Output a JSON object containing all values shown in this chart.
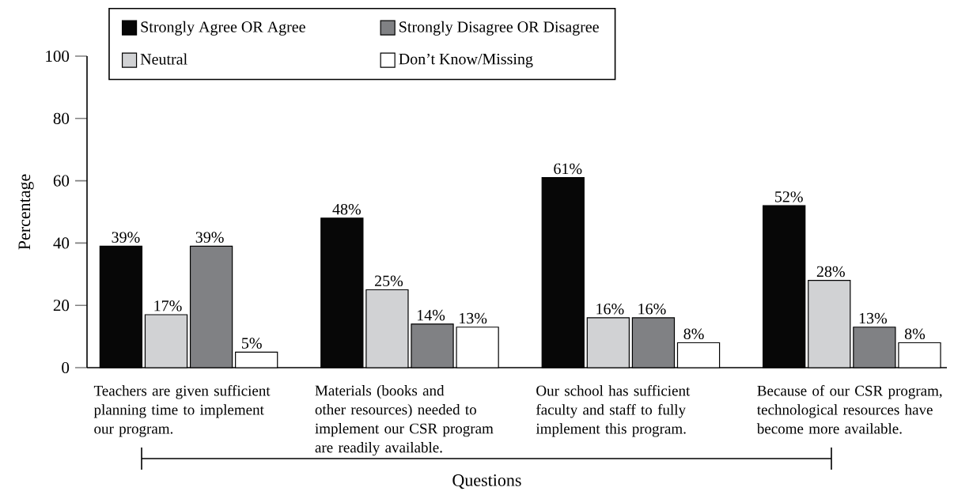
{
  "chart_data": {
    "type": "bar",
    "categories": [
      "Teachers are given sufficient planning time to implement our program.",
      "Materials (books and other resources) needed to implement our CSR program are readily available.",
      "Our school has sufficient faculty and staff to fully implement this program.",
      "Because of our CSR program, technological resources have become more available."
    ],
    "series": [
      {
        "name": "Strongly Agree OR Agree",
        "color": "#070707",
        "values": [
          39,
          48,
          61,
          52
        ],
        "value_labels": [
          "39%",
          "48%",
          "61%",
          "52%"
        ]
      },
      {
        "name": "Neutral",
        "color": "#d1d2d4",
        "values": [
          17,
          25,
          16,
          28
        ],
        "value_labels": [
          "17%",
          "25%",
          "16%",
          "28%"
        ]
      },
      {
        "name": "Strongly Disagree OR Disagree",
        "color": "#808184",
        "values": [
          39,
          14,
          16,
          13
        ],
        "value_labels": [
          "39%",
          "14%",
          "16%",
          "13%"
        ]
      },
      {
        "name": "Don’t Know/Missing",
        "color": "#ffffff",
        "values": [
          5,
          13,
          8,
          8
        ],
        "value_labels": [
          "5%",
          "13%",
          "8%",
          "8%"
        ]
      }
    ],
    "xlabel": "Questions",
    "ylabel": "Percentage",
    "ylim": [
      0,
      100
    ],
    "yticks": [
      0,
      20,
      40,
      60,
      80,
      100
    ],
    "grid": false,
    "legend": "top"
  }
}
